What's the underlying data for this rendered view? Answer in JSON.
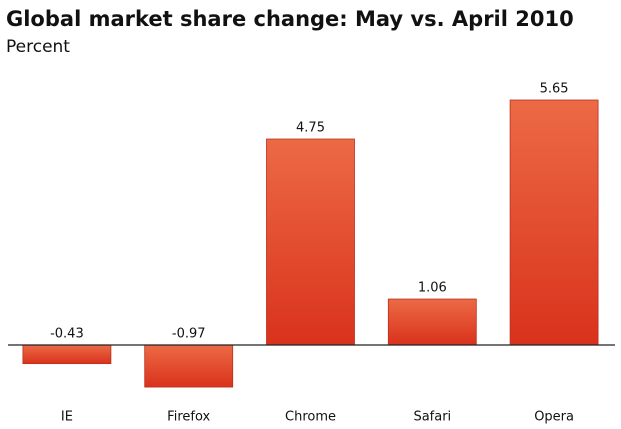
{
  "chart_data": {
    "type": "bar",
    "title": "Global market share change: May vs. April 2010",
    "subtitle": "Percent",
    "categories": [
      "IE",
      "Firefox",
      "Chrome",
      "Safari",
      "Opera"
    ],
    "values": [
      -0.43,
      -0.97,
      4.75,
      1.06,
      5.65
    ],
    "color": "#e4482a"
  }
}
